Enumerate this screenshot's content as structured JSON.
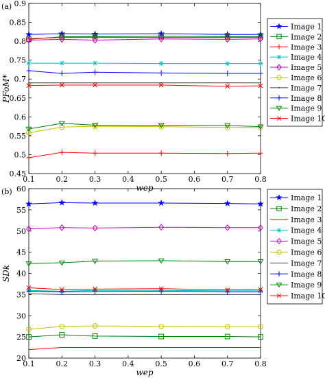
{
  "chart_data": [
    {
      "type": "line",
      "panel_label": "(a)",
      "xlabel": "wep",
      "ylabel": "PFoM*",
      "x": [
        0.1,
        0.2,
        0.3,
        0.5,
        0.7,
        0.8
      ],
      "xlim": [
        0.1,
        0.8
      ],
      "xticks": [
        "0.1",
        "0.2",
        "0.3",
        "0.4",
        "0.5",
        "0.6",
        "0.7",
        "0.8"
      ],
      "ylim": [
        0.45,
        0.9
      ],
      "yticks": [
        "0.45",
        "0.5",
        "0.55",
        "0.6",
        "0.65",
        "0.7",
        "0.75",
        "0.8",
        "0.85",
        "0.9"
      ],
      "grid": false,
      "legend_position": "right-outside",
      "series": [
        {
          "name": "Image 1",
          "color": "#0000ff",
          "marker": "star",
          "values": [
            0.818,
            0.82,
            0.819,
            0.82,
            0.818,
            0.818
          ]
        },
        {
          "name": "Image 2",
          "color": "#008000",
          "marker": "square",
          "values": [
            0.805,
            0.812,
            0.812,
            0.813,
            0.812,
            0.812
          ]
        },
        {
          "name": "Image 3",
          "color": "#ff0000",
          "marker": "plus",
          "values": [
            0.807,
            0.81,
            0.81,
            0.81,
            0.81,
            0.81
          ]
        },
        {
          "name": "Image 4",
          "color": "#00bfbf",
          "marker": "asterisk",
          "values": [
            0.742,
            0.742,
            0.742,
            0.741,
            0.741,
            0.741
          ]
        },
        {
          "name": "Image 5",
          "color": "#bf00bf",
          "marker": "diamond",
          "values": [
            0.803,
            0.805,
            0.803,
            0.806,
            0.805,
            0.806
          ]
        },
        {
          "name": "Image 6",
          "color": "#bfbf00",
          "marker": "circle",
          "values": [
            0.558,
            0.573,
            0.575,
            0.574,
            0.572,
            0.572
          ]
        },
        {
          "name": "Image 7",
          "color": "#404040",
          "marker": "point",
          "values": [
            0.69,
            0.69,
            0.69,
            0.69,
            0.69,
            0.69
          ]
        },
        {
          "name": "Image 8",
          "color": "#0000ff",
          "marker": "plus",
          "values": [
            0.722,
            0.715,
            0.718,
            0.716,
            0.715,
            0.715
          ]
        },
        {
          "name": "Image 9",
          "color": "#008000",
          "marker": "triangle-down",
          "values": [
            0.568,
            0.583,
            0.578,
            0.578,
            0.577,
            0.574
          ]
        },
        {
          "name": "Image 10",
          "color": "#ff0000",
          "marker": "x",
          "values": [
            0.683,
            0.684,
            0.684,
            0.684,
            0.681,
            0.682
          ]
        },
        {
          "name": "",
          "color": "#ff0000",
          "marker": "plus",
          "values": [
            0.492,
            0.506,
            0.504,
            0.504,
            0.503,
            0.504
          ]
        }
      ]
    },
    {
      "type": "line",
      "panel_label": "(b)",
      "xlabel": "wep",
      "ylabel": "SDk",
      "x": [
        0.1,
        0.2,
        0.3,
        0.5,
        0.7,
        0.8
      ],
      "xlim": [
        0.1,
        0.8
      ],
      "xticks": [
        "0.1",
        "0.2",
        "0.3",
        "0.4",
        "0.5",
        "0.6",
        "0.7",
        "0.8"
      ],
      "ylim": [
        20,
        60
      ],
      "yticks": [
        "20",
        "25",
        "30",
        "35",
        "40",
        "45",
        "50",
        "55",
        "60"
      ],
      "grid": false,
      "legend_position": "right-outside",
      "series": [
        {
          "name": "Image 1",
          "color": "#0000ff",
          "marker": "star",
          "values": [
            56.4,
            56.7,
            56.6,
            56.6,
            56.5,
            56.4
          ]
        },
        {
          "name": "Image 2",
          "color": "#008000",
          "marker": "square",
          "values": [
            25.0,
            25.5,
            25.2,
            25.1,
            25.1,
            25.0
          ]
        },
        {
          "name": "Image 3",
          "color": "#ff0000",
          "marker": "none",
          "values": [
            22.0,
            22.5,
            22.5,
            22.5,
            22.5,
            22.5
          ]
        },
        {
          "name": "Image 4",
          "color": "#00bfbf",
          "marker": "asterisk",
          "values": [
            36.0,
            35.8,
            36.0,
            36.0,
            35.9,
            35.9
          ]
        },
        {
          "name": "Image 5",
          "color": "#bf00bf",
          "marker": "diamond",
          "values": [
            50.5,
            50.8,
            50.7,
            50.9,
            50.8,
            50.8
          ]
        },
        {
          "name": "Image 6",
          "color": "#bfbf00",
          "marker": "circle",
          "values": [
            26.8,
            27.5,
            27.6,
            27.5,
            27.4,
            27.4
          ]
        },
        {
          "name": "Image 7",
          "color": "#404040",
          "marker": "none",
          "values": [
            35.2,
            35.0,
            35.0,
            35.0,
            35.0,
            35.0
          ]
        },
        {
          "name": "Image 8",
          "color": "#0000ff",
          "marker": "plus",
          "values": [
            35.8,
            35.6,
            35.7,
            35.8,
            35.6,
            35.6
          ]
        },
        {
          "name": "Image 9",
          "color": "#008000",
          "marker": "triangle-down",
          "values": [
            42.3,
            42.5,
            42.9,
            43.0,
            42.8,
            42.8
          ]
        },
        {
          "name": "Image 10",
          "color": "#ff0000",
          "marker": "x",
          "values": [
            36.6,
            36.2,
            36.3,
            36.4,
            36.1,
            36.2
          ]
        }
      ]
    }
  ]
}
